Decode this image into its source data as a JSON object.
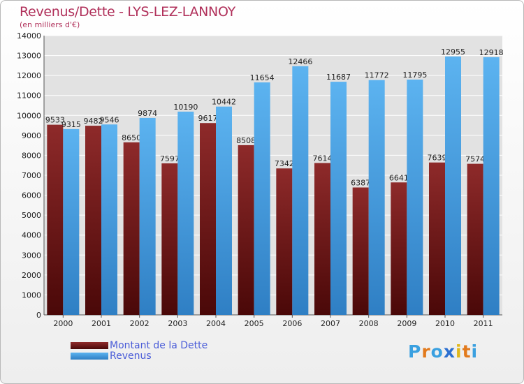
{
  "chart_data": {
    "type": "bar",
    "title": "Revenus/Dette - LYS-LEZ-LANNOY",
    "subtitle": "(en milliers d'€)",
    "categories": [
      "2000",
      "2001",
      "2002",
      "2003",
      "2004",
      "2005",
      "2006",
      "2007",
      "2008",
      "2009",
      "2010",
      "2011"
    ],
    "series": [
      {
        "name": "Montant de la Dette",
        "color": "#7a1c1c",
        "values": [
          9533,
          9482,
          8650,
          7597,
          9617,
          8508,
          7342,
          7614,
          6387,
          6641,
          7639,
          7574
        ]
      },
      {
        "name": "Revenus",
        "color": "#4aa5e8",
        "values": [
          9315,
          9546,
          9874,
          10190,
          10442,
          11654,
          12466,
          11687,
          11772,
          11795,
          12955,
          12918
        ]
      }
    ],
    "ylim": [
      0,
      14000
    ],
    "yticks": [
      0,
      1000,
      2000,
      3000,
      4000,
      5000,
      6000,
      7000,
      8000,
      9000,
      10000,
      11000,
      12000,
      13000,
      14000
    ],
    "grid": true,
    "legend_position": "bottom-left"
  },
  "logo": {
    "text": "Proxiti"
  }
}
